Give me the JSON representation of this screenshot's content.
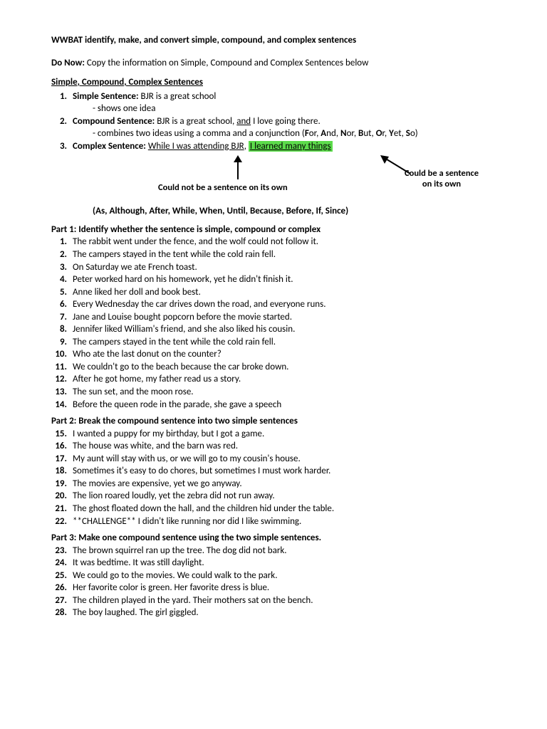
{
  "title": "WWBAT identify, make, and convert simple, compound, and complex sentences",
  "donow_label": "Do Now:",
  "donow_text": " Copy the information on Simple, Compound and Complex Sentences below",
  "section_head": "Simple, Compound, Complex Sentences",
  "def1_num": "1.",
  "def1_label": "Simple Sentence:",
  "def1_text": " BJR is a great school",
  "def1_sub": "- shows one idea",
  "def2_num": "2.",
  "def2_label": "Compound Sentence:",
  "def2_text_a": " BJR is a great school, ",
  "def2_and": "and",
  "def2_text_b": " I love going there.",
  "def2_sub_a": "- combines two ideas using a comma and a conjunction (",
  "def2_sub_b": "or, ",
  "def2_sub_c": "nd, ",
  "def2_sub_d": "or, ",
  "def2_sub_e": "ut, ",
  "def2_sub_f": "r, ",
  "def2_sub_g": "et, ",
  "def2_sub_h": "o)",
  "fan_F": "F",
  "fan_A": "A",
  "fan_N": "N",
  "fan_B": "B",
  "fan_O": "O",
  "fan_Y": "Y",
  "fan_S": "S",
  "def3_num": "3.",
  "def3_label": "Complex Sentence:",
  "def3_clause1": "While I was attending BJR",
  "def3_comma": ", ",
  "def3_clause2": "I learned many things",
  "lbl_left": "Could not be a sentence on its own",
  "lbl_right1": "Could be a sentence",
  "lbl_right2": "on its own",
  "sub_open": "(",
  "sub_A": "A",
  "sub_as": "s, ",
  "sub_Al": "A",
  "sub_lth": "lthough, ",
  "sub_Af": "A",
  "sub_fter": "fter, ",
  "sub_W": "W",
  "sub_hile": "hile, ",
  "sub_W2": "W",
  "sub_hen": "hen, ",
  "sub_U": "U",
  "sub_ntil": "ntil, ",
  "sub_B": "B",
  "sub_ecause": "ecause, ",
  "sub_Be": "B",
  "sub_efore": "efore, ",
  "sub_I": "I",
  "sub_f": "f, ",
  "sub_S": "S",
  "sub_ince": "ince)",
  "part1_head": "Part 1: Identify whether the sentence is simple, compound or complex",
  "p1": [
    {
      "n": "1.",
      "t": "The rabbit went under the fence, and the wolf could not follow it."
    },
    {
      "n": "2.",
      "t": "The campers stayed in the tent while the cold rain fell."
    },
    {
      "n": "3.",
      "t": "On Saturday we ate French toast."
    },
    {
      "n": "4.",
      "t": "Peter worked hard on his homework, yet he didn't finish it."
    },
    {
      "n": "5.",
      "t": "Anne liked her doll and book best."
    },
    {
      "n": "6.",
      "t": "Every Wednesday the car drives down the road, and everyone runs."
    },
    {
      "n": "7.",
      "t": "Jane and Louise bought popcorn before the movie started."
    },
    {
      "n": "8.",
      "t": "Jennifer liked William's friend, and she also liked his cousin."
    },
    {
      "n": "9.",
      "t": "The campers stayed in the tent while the cold rain fell."
    },
    {
      "n": "10.",
      "t": "Who ate the last donut on the counter?"
    },
    {
      "n": "11.",
      "t": "We couldn't go to the beach because the car broke down."
    },
    {
      "n": "12.",
      "t": "After he got home, my father read us a story."
    },
    {
      "n": "13.",
      "t": "The sun set, and the moon rose."
    },
    {
      "n": "14.",
      "t": "Before the queen rode in the parade, she gave a speech"
    }
  ],
  "part2_head": "Part 2: Break the compound sentence into two simple sentences",
  "p2": [
    {
      "n": "15.",
      "t": "I wanted a puppy for my birthday, but I got a game."
    },
    {
      "n": "16.",
      "t": "The house was white, and the barn was red."
    },
    {
      "n": "17.",
      "t": "My aunt will stay with us, or we will go to my cousin's house."
    },
    {
      "n": "18.",
      "t": "Sometimes it's easy to do chores, but sometimes I must work harder."
    },
    {
      "n": "19.",
      "t": "The movies are expensive, yet we go anyway."
    },
    {
      "n": "20.",
      "t": "The lion roared loudly, yet the zebra did not run away."
    },
    {
      "n": "21.",
      "t": "The ghost floated down the hall, and the children hid under the table."
    },
    {
      "n": "22.",
      "t": "**CHALLENGE** I didn't like running nor did I like swimming."
    }
  ],
  "part3_head": "Part 3: Make one compound sentence using the two simple sentences.",
  "p3": [
    {
      "n": "23.",
      "t": "The brown squirrel ran up the tree. The dog did not bark."
    },
    {
      "n": "24.",
      "t": "It was bedtime. It was still daylight."
    },
    {
      "n": "25.",
      "t": "We could go to the movies. We could walk to the park."
    },
    {
      "n": "26.",
      "t": "Her favorite color is green. Her favorite dress is blue."
    },
    {
      "n": "27.",
      "t": "The children played in the yard. Their mothers sat on the bench."
    },
    {
      "n": "28.",
      "t": "The boy laughed. The girl giggled."
    }
  ],
  "colors": {
    "highlight": "#5cdb4b",
    "text": "#000000",
    "bg": "#ffffff"
  }
}
